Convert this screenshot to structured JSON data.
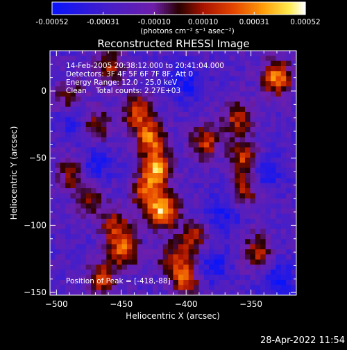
{
  "chart_data": {
    "type": "heatmap",
    "title": "Reconstructed RHESSI Image",
    "xlabel": "Heliocentric X (arcsec)",
    "ylabel": "Heliocentric Y (arcsec)",
    "xlim": [
      -505,
      -315
    ],
    "ylim": [
      -152,
      30
    ],
    "x_ticks": [
      -500,
      -450,
      -400,
      -350
    ],
    "y_ticks": [
      0,
      -50,
      -100,
      -150
    ],
    "colorbar": {
      "colormap": "rhessi-blue-purple-red-yellow-white",
      "range": [
        -0.00052,
        0.00052
      ],
      "ticks": [
        "-0.00052",
        "-0.00031",
        "-0.00010",
        "0.00010",
        "0.00031",
        "0.00052"
      ],
      "unit_label": "(photons cm⁻² s⁻¹ asec⁻²)"
    },
    "annotations": [
      "14-Feb-2005 20:38:12.000 to 20:41:04.000",
      "Detectors: 3F 4F 5F 6F 7F 8F, Att 0",
      "Energy Range: 12.0 - 25.0 keV",
      "Clean    Total counts: 2.27E+03",
      "Position of Peak = [-418,-88]"
    ],
    "peak": [
      -418,
      -88
    ],
    "sources": [
      {
        "x": -418,
        "y": -88,
        "strength": 1.0
      },
      {
        "x": -422,
        "y": -58,
        "strength": 0.92
      },
      {
        "x": -428,
        "y": -35,
        "strength": 0.8
      },
      {
        "x": -438,
        "y": -15,
        "strength": 0.65
      },
      {
        "x": -448,
        "y": -118,
        "strength": 0.72
      },
      {
        "x": -455,
        "y": -100,
        "strength": 0.55
      },
      {
        "x": -470,
        "y": -25,
        "strength": 0.6
      },
      {
        "x": -475,
        "y": -80,
        "strength": 0.5
      },
      {
        "x": -488,
        "y": -60,
        "strength": 0.52
      },
      {
        "x": -490,
        "y": -5,
        "strength": 0.5
      },
      {
        "x": -460,
        "y": 18,
        "strength": 0.55
      },
      {
        "x": -385,
        "y": -38,
        "strength": 0.62
      },
      {
        "x": -395,
        "y": -110,
        "strength": 0.6
      },
      {
        "x": -400,
        "y": -140,
        "strength": 0.7
      },
      {
        "x": -360,
        "y": -20,
        "strength": 0.6
      },
      {
        "x": -355,
        "y": -50,
        "strength": 0.68
      },
      {
        "x": -355,
        "y": -75,
        "strength": 0.55
      },
      {
        "x": -330,
        "y": 10,
        "strength": 0.85
      },
      {
        "x": -345,
        "y": -120,
        "strength": 0.6
      },
      {
        "x": -465,
        "y": -140,
        "strength": 0.6
      },
      {
        "x": -410,
        "y": -125,
        "strength": 0.5
      },
      {
        "x": -432,
        "y": -75,
        "strength": 0.62
      }
    ],
    "troughs": [
      {
        "x": -485,
        "y": -20
      },
      {
        "x": -370,
        "y": -90
      },
      {
        "x": -340,
        "y": -60
      },
      {
        "x": -400,
        "y": 5
      },
      {
        "x": -470,
        "y": -55
      },
      {
        "x": -380,
        "y": -130
      },
      {
        "x": -330,
        "y": -140
      }
    ]
  },
  "footer": {
    "timestamp": "28-Apr-2022 11:54"
  }
}
